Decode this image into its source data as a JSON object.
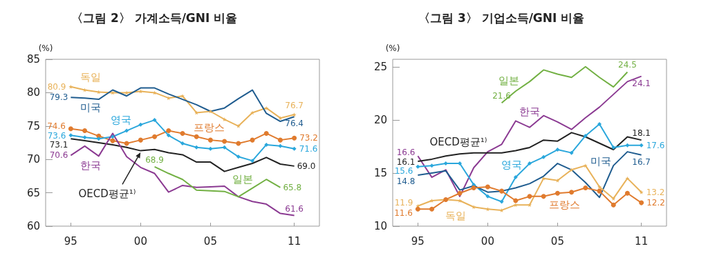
{
  "chart_data": [
    {
      "type": "line",
      "title": "〈그림 2〉 가계소득/GNI 비율",
      "ylabel": "(%)",
      "x": [
        1995,
        1996,
        1997,
        1998,
        1999,
        2000,
        2001,
        2002,
        2003,
        2004,
        2005,
        2006,
        2007,
        2008,
        2009,
        2010,
        2011
      ],
      "xlim": [
        1993.2,
        2012.8
      ],
      "xticks": [
        {
          "value": 1995,
          "label": "95"
        },
        {
          "value": 2000,
          "label": "00"
        },
        {
          "value": 2005,
          "label": "05"
        },
        {
          "value": 2011,
          "label": "11"
        }
      ],
      "ylim": [
        60,
        85
      ],
      "yticks": [
        60,
        65,
        70,
        75,
        80,
        85
      ],
      "series": [
        {
          "name": "독일",
          "color": "#e8b25a",
          "marker": "star",
          "values": [
            80.9,
            80.4,
            80.1,
            80.0,
            80.0,
            80.2,
            80.0,
            79.2,
            79.5,
            77.0,
            77.2,
            76.0,
            75.0,
            77.0,
            77.7,
            76.2,
            76.7
          ],
          "value_labels": [
            "80.9",
            null,
            null,
            null,
            null,
            null,
            null,
            null,
            null,
            null,
            null,
            null,
            null,
            null,
            null,
            null,
            "76.7"
          ]
        },
        {
          "name": "미국",
          "color": "#1f5c8f",
          "marker": "none",
          "values": [
            79.3,
            79.2,
            79.0,
            80.4,
            79.5,
            80.7,
            80.7,
            79.8,
            79.0,
            78.2,
            77.2,
            77.7,
            79.1,
            80.4,
            76.9,
            75.7,
            76.4
          ],
          "value_labels": [
            "79.3",
            null,
            null,
            null,
            null,
            null,
            null,
            null,
            null,
            null,
            null,
            null,
            null,
            null,
            null,
            null,
            "76.4"
          ]
        },
        {
          "name": "프랑스",
          "color": "#e07b2e",
          "marker": "circle",
          "values": [
            74.6,
            74.3,
            73.5,
            72.8,
            72.4,
            72.9,
            73.4,
            74.3,
            73.9,
            73.4,
            72.9,
            72.7,
            72.4,
            72.9,
            73.9,
            72.9,
            73.2
          ],
          "value_labels": [
            "74.6",
            null,
            null,
            null,
            null,
            null,
            null,
            null,
            null,
            null,
            null,
            null,
            null,
            null,
            null,
            null,
            "73.2"
          ]
        },
        {
          "name": "영국",
          "color": "#2aa7dc",
          "marker": "diamond",
          "values": [
            73.6,
            73.3,
            73.1,
            73.4,
            74.3,
            75.2,
            75.9,
            73.6,
            72.4,
            71.8,
            71.6,
            71.8,
            70.4,
            69.8,
            72.2,
            72.0,
            71.6
          ],
          "value_labels": [
            "73.6",
            null,
            null,
            null,
            null,
            null,
            null,
            null,
            null,
            null,
            null,
            null,
            null,
            null,
            null,
            null,
            "71.6"
          ]
        },
        {
          "name": "OECD평균¹⁾",
          "color": "#222222",
          "marker": "none",
          "values": [
            73.1,
            72.8,
            72.5,
            72.2,
            71.8,
            71.3,
            71.5,
            71.0,
            70.7,
            69.6,
            69.6,
            68.2,
            68.8,
            69.4,
            70.3,
            69.3,
            69.0
          ],
          "value_labels": [
            "73.1",
            null,
            null,
            null,
            null,
            null,
            null,
            null,
            null,
            null,
            null,
            null,
            null,
            null,
            null,
            null,
            "69.0"
          ]
        },
        {
          "name": "한국",
          "color": "#8b3a92",
          "marker": "none",
          "values": [
            70.6,
            72.0,
            70.5,
            73.9,
            70.4,
            68.8,
            67.9,
            65.1,
            66.1,
            65.8,
            65.9,
            66.0,
            64.4,
            63.7,
            63.3,
            61.9,
            61.6
          ],
          "value_labels": [
            "70.6",
            null,
            null,
            null,
            null,
            null,
            null,
            null,
            null,
            null,
            null,
            null,
            null,
            null,
            null,
            null,
            "61.6"
          ]
        },
        {
          "name": "일본",
          "color": "#72b043",
          "marker": "none",
          "values": [
            null,
            null,
            null,
            null,
            null,
            null,
            68.9,
            67.9,
            67.0,
            65.4,
            65.3,
            65.2,
            64.4,
            65.7,
            67.0,
            65.8,
            null
          ],
          "value_labels": [
            null,
            null,
            null,
            null,
            null,
            null,
            "68.9",
            null,
            null,
            null,
            null,
            null,
            null,
            null,
            null,
            "65.8",
            null
          ]
        }
      ]
    },
    {
      "type": "line",
      "title": "〈그림 3〉 기업소득/GNI 비율",
      "ylabel": "(%)",
      "x": [
        1995,
        1996,
        1997,
        1998,
        1999,
        2000,
        2001,
        2002,
        2003,
        2004,
        2005,
        2006,
        2007,
        2008,
        2009,
        2010,
        2011
      ],
      "xlim": [
        1993.2,
        2012.8
      ],
      "xticks": [
        {
          "value": 1995,
          "label": "95"
        },
        {
          "value": 2000,
          "label": "00"
        },
        {
          "value": 2005,
          "label": "05"
        },
        {
          "value": 2011,
          "label": "11"
        }
      ],
      "ylim": [
        10,
        25.7
      ],
      "yticks": [
        10,
        15,
        20,
        25
      ],
      "series": [
        {
          "name": "일본",
          "color": "#72b043",
          "marker": "none",
          "values": [
            null,
            null,
            null,
            null,
            null,
            null,
            21.6,
            22.7,
            23.6,
            24.7,
            24.3,
            24.0,
            25.0,
            24.0,
            23.1,
            24.5,
            null
          ],
          "value_labels": [
            null,
            null,
            null,
            null,
            null,
            null,
            "21.6",
            null,
            null,
            null,
            null,
            null,
            null,
            null,
            null,
            "24.5",
            null
          ]
        },
        {
          "name": "한국",
          "color": "#8b3a92",
          "marker": "none",
          "values": [
            16.6,
            14.6,
            15.3,
            12.8,
            15.5,
            17.0,
            17.7,
            19.9,
            19.3,
            20.4,
            19.8,
            19.1,
            20.2,
            21.2,
            22.4,
            23.6,
            24.1
          ],
          "value_labels": [
            "16.6",
            null,
            null,
            null,
            null,
            null,
            null,
            null,
            null,
            null,
            null,
            null,
            null,
            null,
            null,
            null,
            "24.1"
          ]
        },
        {
          "name": "OECD평균¹⁾",
          "color": "#222222",
          "marker": "none",
          "values": [
            16.1,
            16.3,
            16.6,
            16.8,
            16.9,
            16.9,
            16.9,
            17.1,
            17.4,
            18.1,
            18.0,
            18.8,
            18.4,
            17.8,
            17.2,
            18.4,
            18.1
          ],
          "value_labels": [
            "16.1",
            null,
            null,
            null,
            null,
            null,
            null,
            null,
            null,
            null,
            null,
            null,
            null,
            null,
            null,
            null,
            "18.1"
          ]
        },
        {
          "name": "영국",
          "color": "#2aa7dc",
          "marker": "diamond",
          "values": [
            15.6,
            15.7,
            15.9,
            15.9,
            13.9,
            12.8,
            12.3,
            14.6,
            15.9,
            16.5,
            17.2,
            16.9,
            18.5,
            19.6,
            17.4,
            17.6,
            17.6
          ],
          "value_labels": [
            "15.6",
            null,
            null,
            null,
            null,
            null,
            null,
            null,
            null,
            null,
            null,
            null,
            null,
            null,
            null,
            null,
            "17.6"
          ]
        },
        {
          "name": "미국",
          "color": "#1f5c8f",
          "marker": "none",
          "values": [
            14.8,
            15.0,
            15.2,
            13.4,
            13.8,
            13.2,
            13.3,
            13.6,
            14.0,
            14.7,
            15.9,
            15.3,
            14.1,
            12.7,
            15.7,
            17.0,
            16.7
          ],
          "value_labels": [
            "14.8",
            null,
            null,
            null,
            null,
            null,
            null,
            null,
            null,
            null,
            null,
            null,
            null,
            null,
            null,
            null,
            "16.7"
          ]
        },
        {
          "name": "독일",
          "color": "#e8b25a",
          "marker": "star",
          "values": [
            11.9,
            12.4,
            12.5,
            12.4,
            11.8,
            11.6,
            11.5,
            12.0,
            12.0,
            14.5,
            14.3,
            15.3,
            15.7,
            13.7,
            12.6,
            14.5,
            13.2
          ],
          "value_labels": [
            "11.9",
            null,
            null,
            null,
            null,
            null,
            null,
            null,
            null,
            null,
            null,
            null,
            null,
            null,
            null,
            null,
            "13.2"
          ]
        },
        {
          "name": "프랑스",
          "color": "#e07b2e",
          "marker": "circle",
          "values": [
            11.6,
            11.6,
            12.5,
            13.1,
            13.6,
            13.7,
            13.3,
            12.4,
            12.8,
            12.8,
            13.1,
            13.2,
            13.6,
            13.3,
            12.0,
            13.1,
            12.2
          ],
          "value_labels": [
            "11.6",
            null,
            null,
            null,
            null,
            null,
            null,
            null,
            null,
            null,
            null,
            null,
            null,
            null,
            null,
            null,
            "12.2"
          ]
        }
      ]
    }
  ]
}
